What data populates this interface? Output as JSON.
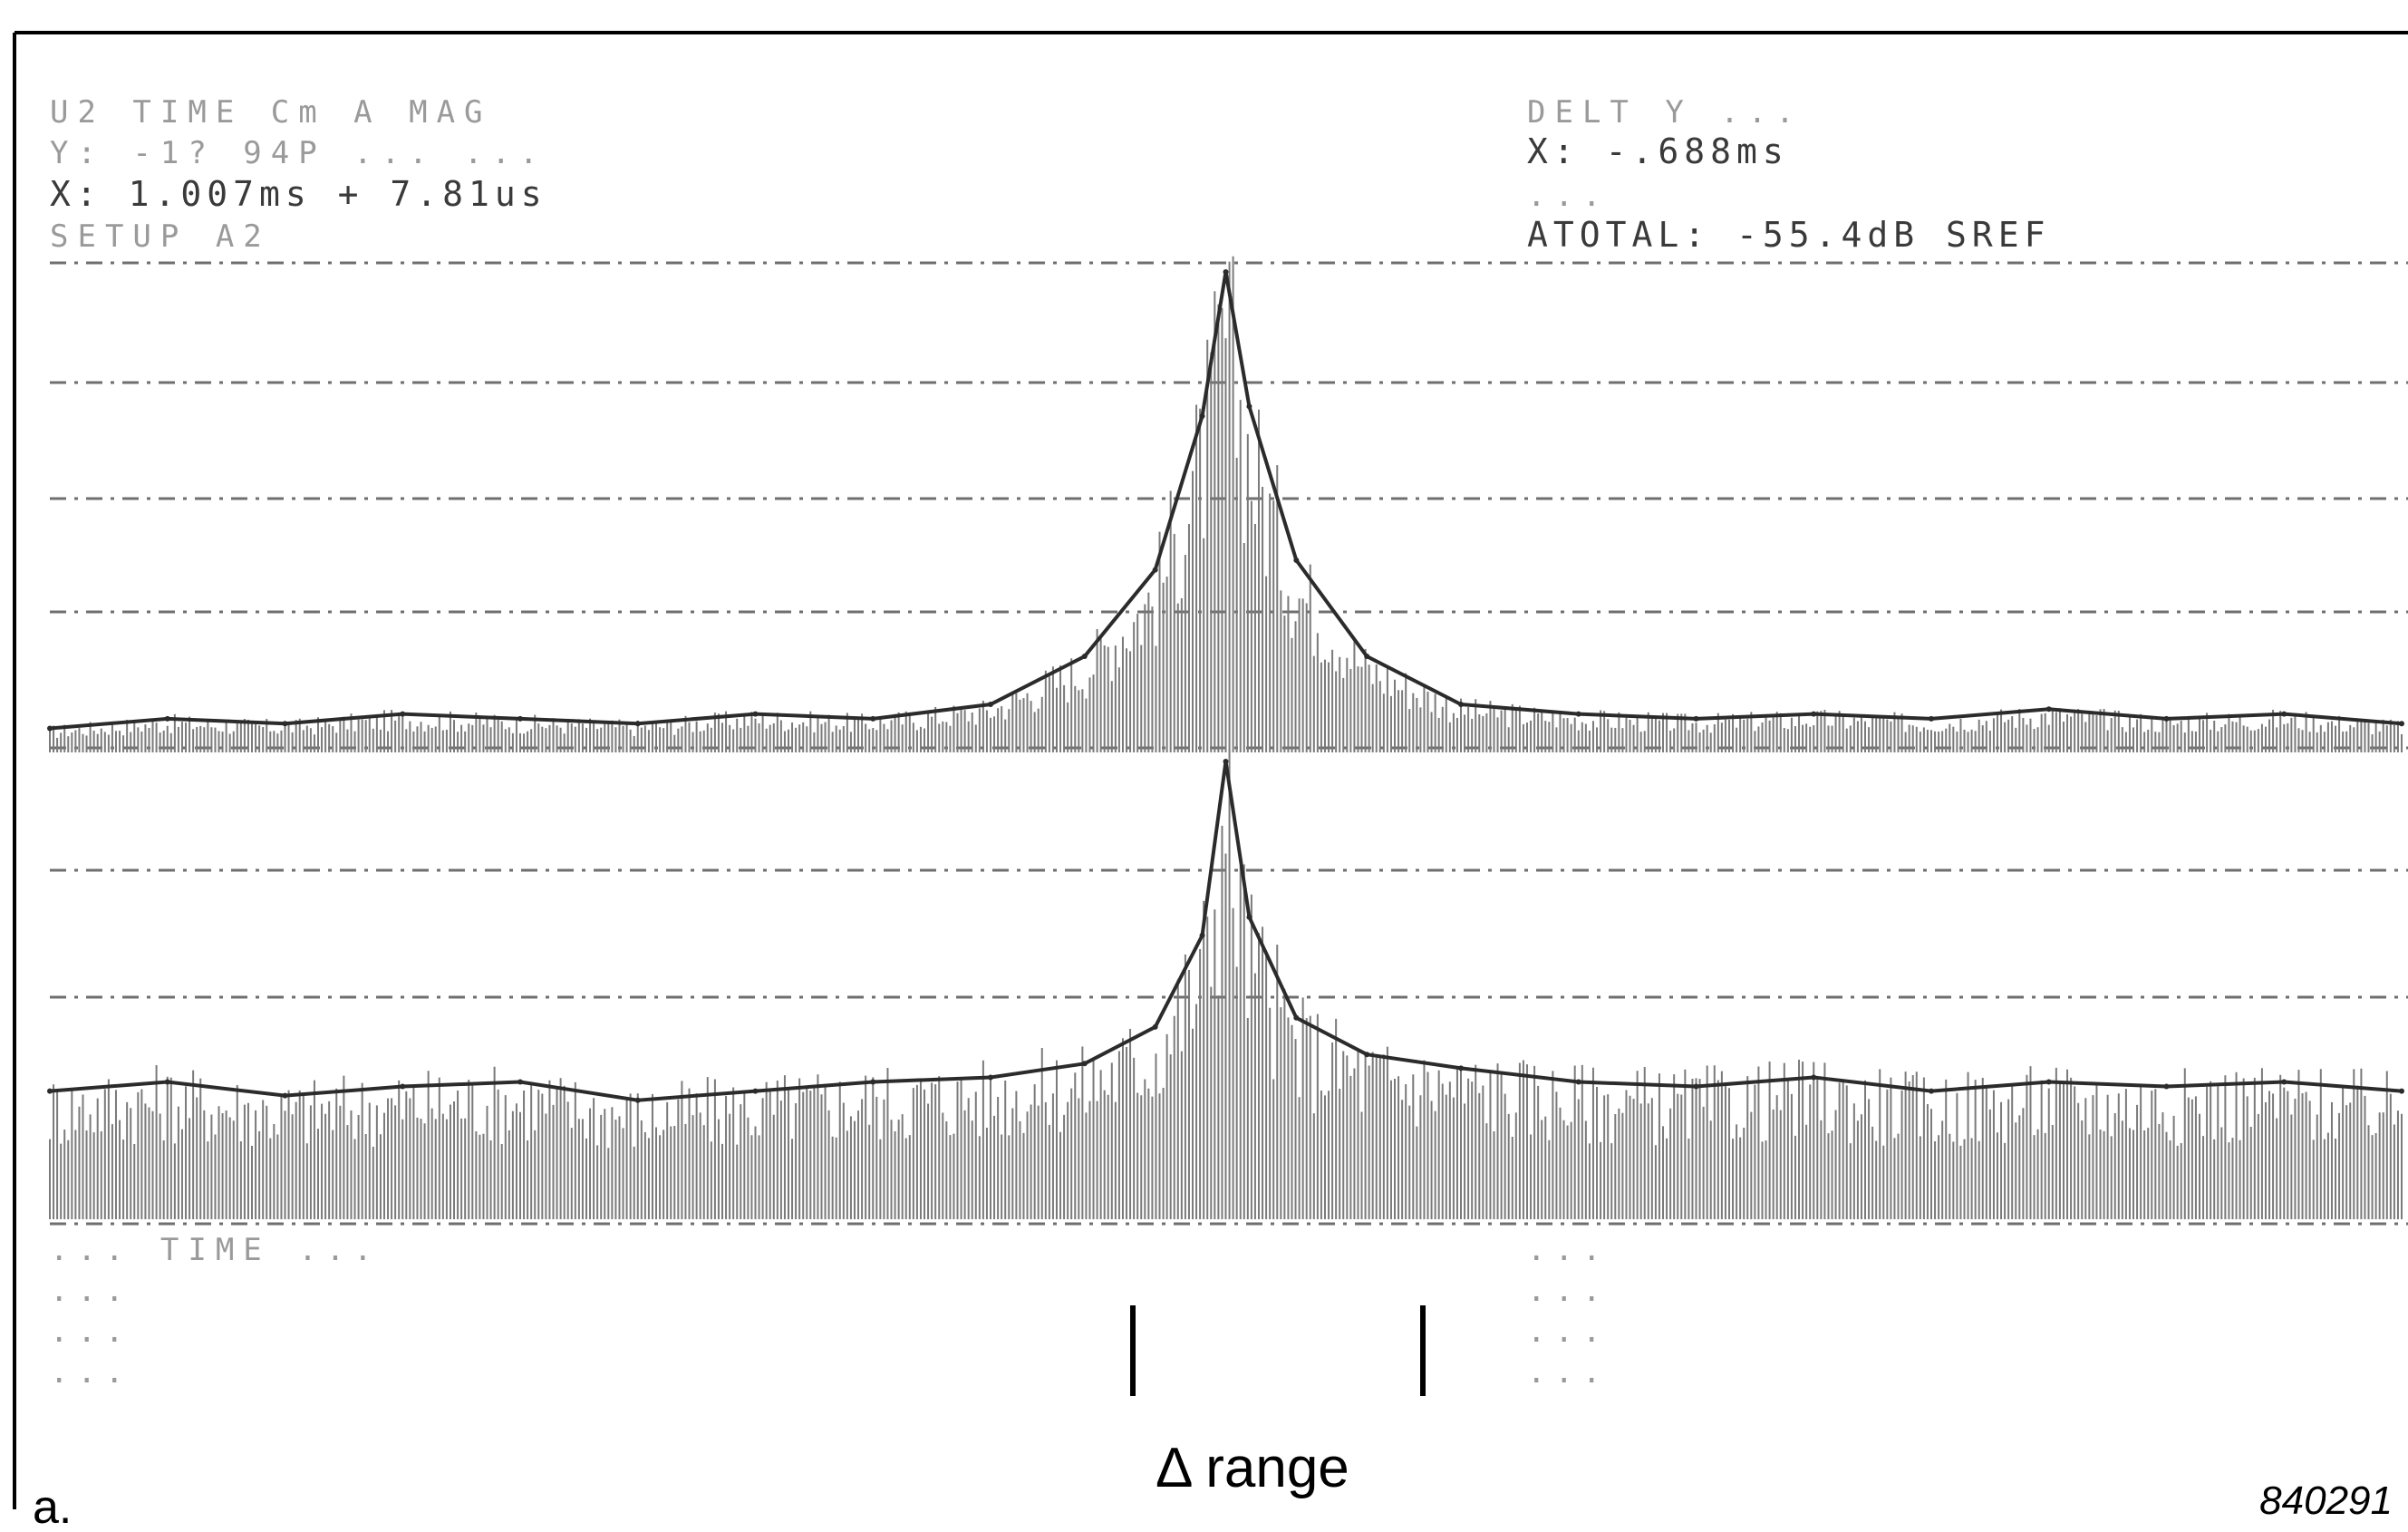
{
  "screen": {
    "header_left": [
      "U2  TIME Cm A      MAG",
      "Y:  -1? 94P  ...     ...",
      "X:  1.007ms  + 7.81us",
      "SETUP A2"
    ],
    "header_right": [
      "DELT  Y   ...",
      "X:  -.688ms",
      "...",
      "ATOTAL: -55.4dB SREF"
    ],
    "footer_left": [
      "...  TIME ...",
      "...",
      "...",
      "..."
    ],
    "footer_right": [
      "...",
      "...",
      "...",
      "..."
    ]
  },
  "annotation": {
    "range_label": "Δ range",
    "panel_label": "a.",
    "figure_id": "840291"
  },
  "chart_data": {
    "type": "line",
    "title": "",
    "xlabel": "",
    "ylabel": "",
    "grid": true,
    "colors": {
      "trace": "#2b2b2b",
      "grid": "#6f6f6f",
      "border": "#000000"
    },
    "series": [
      {
        "x": [
          0,
          0.05,
          0.1,
          0.15,
          0.2,
          0.25,
          0.3,
          0.35,
          0.4,
          0.44,
          0.47,
          0.49,
          0.5,
          0.51,
          0.53,
          0.56,
          0.6,
          0.65,
          0.7,
          0.75,
          0.8,
          0.85,
          0.9,
          0.95,
          1
        ],
        "values": [
          0.05,
          0.07,
          0.06,
          0.08,
          0.07,
          0.06,
          0.08,
          0.07,
          0.1,
          0.2,
          0.38,
          0.7,
          1.0,
          0.72,
          0.4,
          0.2,
          0.1,
          0.08,
          0.07,
          0.08,
          0.07,
          0.09,
          0.07,
          0.08,
          0.06
        ]
      },
      {
        "x": [
          0,
          0.05,
          0.1,
          0.15,
          0.2,
          0.25,
          0.3,
          0.35,
          0.4,
          0.44,
          0.47,
          0.49,
          0.5,
          0.51,
          0.53,
          0.56,
          0.6,
          0.65,
          0.7,
          0.75,
          0.8,
          0.85,
          0.9,
          0.95,
          1
        ],
        "values": [
          0.28,
          0.3,
          0.27,
          0.29,
          0.3,
          0.26,
          0.28,
          0.3,
          0.31,
          0.34,
          0.42,
          0.62,
          1.0,
          0.66,
          0.44,
          0.36,
          0.33,
          0.3,
          0.29,
          0.31,
          0.28,
          0.3,
          0.29,
          0.3,
          0.28
        ]
      }
    ]
  }
}
